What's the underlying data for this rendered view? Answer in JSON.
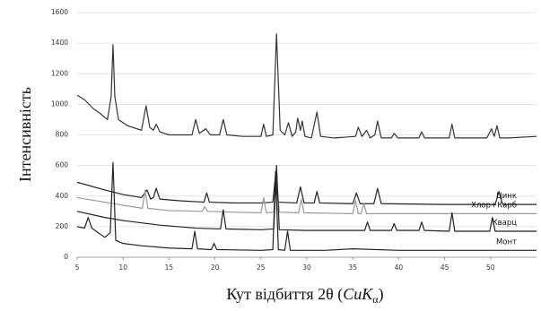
{
  "chart_data": {
    "type": "line",
    "ylabel": "Інтенсивність",
    "xlabel": [
      "Кут відбиття 2θ (",
      "CuK",
      "α",
      ")"
    ],
    "xlim": [
      5,
      55
    ],
    "xticks": [
      5,
      10,
      15,
      20,
      25,
      30,
      35,
      40,
      45,
      50
    ],
    "ylim": [
      0,
      1600
    ],
    "yticks": [
      0,
      200,
      400,
      600,
      800,
      1000,
      1200,
      1400,
      1600
    ],
    "grid": true,
    "series": [
      {
        "color": "#333333",
        "x": [
          5,
          5.8,
          6.3,
          6.8,
          7.5,
          8.3,
          8.7,
          8.9,
          9.1,
          9.5,
          10.5,
          12,
          12.5,
          12.9,
          13.3,
          13.6,
          14,
          15,
          17.5,
          17.9,
          18.3,
          19,
          19.5,
          20.5,
          20.9,
          21.3,
          23,
          25,
          25.3,
          25.6,
          26.3,
          26.7,
          27.1,
          27.6,
          28,
          28.4,
          28.8,
          29,
          29.3,
          29.5,
          29.8,
          30.5,
          31.1,
          31.5,
          33,
          35.3,
          35.6,
          36,
          36.5,
          36.9,
          37.4,
          37.7,
          38.1,
          39.2,
          39.5,
          39.9,
          42.2,
          42.5,
          42.8,
          45.5,
          45.8,
          46.1,
          49.6,
          50.1,
          50.4,
          50.7,
          51,
          52,
          55
        ],
        "values": [
          1060,
          1030,
          1000,
          970,
          940,
          900,
          1050,
          1390,
          1050,
          900,
          860,
          830,
          990,
          850,
          830,
          870,
          820,
          800,
          800,
          900,
          810,
          840,
          800,
          800,
          900,
          800,
          790,
          790,
          870,
          790,
          800,
          1460,
          830,
          800,
          880,
          790,
          820,
          910,
          830,
          890,
          790,
          780,
          950,
          790,
          780,
          790,
          850,
          790,
          830,
          780,
          800,
          890,
          780,
          780,
          810,
          780,
          780,
          820,
          780,
          780,
          870,
          780,
          780,
          840,
          790,
          860,
          780,
          780,
          790
        ]
      },
      {
        "name": "Цинк",
        "color": "#222222",
        "x": [
          5,
          8,
          10,
          12,
          12.6,
          13,
          13.3,
          13.6,
          14,
          16,
          18.8,
          19.1,
          19.4,
          22,
          25,
          26.3,
          26.6,
          26.9,
          28.9,
          29.3,
          29.7,
          30.8,
          31.1,
          31.4,
          35,
          35.4,
          35.8,
          37.3,
          37.7,
          38.1,
          45,
          50.5,
          50.9,
          51.3,
          55
        ],
        "values": [
          490,
          440,
          410,
          390,
          440,
          380,
          390,
          450,
          380,
          370,
          360,
          420,
          360,
          355,
          355,
          360,
          540,
          360,
          355,
          460,
          355,
          355,
          430,
          355,
          350,
          420,
          350,
          350,
          450,
          350,
          345,
          345,
          430,
          345,
          345
        ]
      },
      {
        "name": "Хлор+Карб",
        "color": "#9a9a9a",
        "x": [
          5,
          8,
          10,
          12.1,
          12.4,
          12.7,
          15,
          18.6,
          18.9,
          19.2,
          22,
          25,
          25.3,
          25.6,
          26.4,
          26.7,
          27,
          29.1,
          29.4,
          29.7,
          35,
          35.3,
          35.6,
          35.9,
          36.2,
          36.5,
          45,
          55
        ],
        "values": [
          390,
          360,
          340,
          320,
          440,
          320,
          305,
          300,
          330,
          300,
          295,
          290,
          390,
          290,
          295,
          520,
          295,
          290,
          380,
          290,
          285,
          370,
          285,
          285,
          350,
          285,
          285,
          285
        ]
      },
      {
        "name": "Кварц",
        "color": "#222222",
        "x": [
          5,
          8,
          10,
          14,
          18,
          20.6,
          20.9,
          21.2,
          25,
          26.4,
          26.7,
          27,
          30,
          36.3,
          36.6,
          36.9,
          39.2,
          39.5,
          39.8,
          42.2,
          42.5,
          42.8,
          45.5,
          45.8,
          46.1,
          49.9,
          50.2,
          50.5,
          55
        ],
        "values": [
          300,
          260,
          240,
          210,
          190,
          185,
          310,
          185,
          180,
          185,
          600,
          180,
          175,
          175,
          230,
          175,
          175,
          220,
          175,
          175,
          230,
          175,
          170,
          290,
          170,
          170,
          260,
          170,
          170
        ]
      },
      {
        "name": "Монт",
        "color": "#222222",
        "x": [
          5,
          5.8,
          6.2,
          6.6,
          8,
          8.6,
          8.9,
          9.2,
          10,
          12,
          15,
          17.5,
          17.8,
          18.1,
          19.6,
          19.9,
          20.2,
          25,
          26.3,
          26.6,
          26.9,
          27.6,
          27.9,
          28.2,
          32,
          35,
          40,
          55
        ],
        "values": [
          200,
          190,
          260,
          190,
          130,
          160,
          620,
          110,
          90,
          75,
          60,
          55,
          170,
          55,
          50,
          90,
          50,
          45,
          50,
          560,
          50,
          45,
          170,
          45,
          45,
          55,
          45,
          45
        ]
      }
    ]
  }
}
